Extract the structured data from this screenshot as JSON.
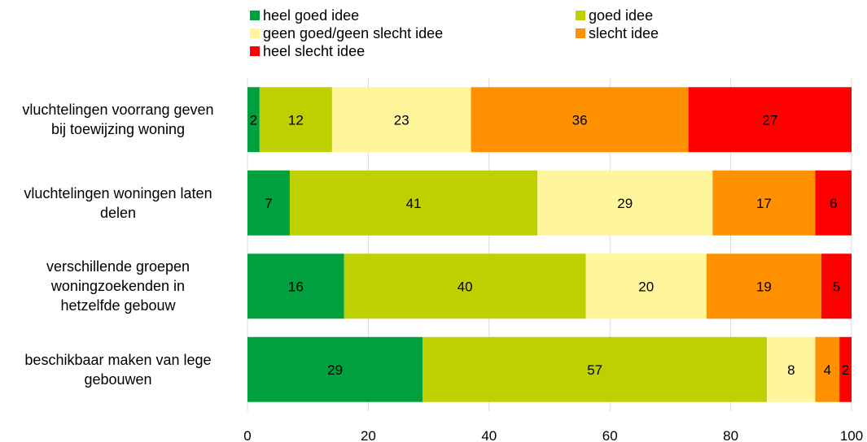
{
  "chart_data": {
    "type": "bar",
    "orientation": "horizontal",
    "stacked": true,
    "categories": [
      "vluchtelingen voorrang geven bij toewijzing woning",
      "vluchtelingen woningen laten delen",
      "verschillende groepen woningzoekenden in hetzelfde gebouw",
      "beschikbaar maken van lege gebouwen"
    ],
    "category_lines": [
      [
        "vluchtelingen voorrang geven",
        "bij toewijzing woning"
      ],
      [
        "vluchtelingen woningen laten",
        "delen"
      ],
      [
        "verschillende groepen",
        "woningzoekenden in",
        "hetzelfde gebouw"
      ],
      [
        "beschikbaar maken van lege",
        "gebouwen"
      ]
    ],
    "series": [
      {
        "name": "heel goed idee",
        "color": "#00a03e",
        "values": [
          2,
          7,
          16,
          29
        ]
      },
      {
        "name": "goed idee",
        "color": "#bed000",
        "values": [
          12,
          41,
          40,
          57
        ]
      },
      {
        "name": "geen goed/geen slecht idee",
        "color": "#fff59a",
        "values": [
          23,
          29,
          20,
          8
        ]
      },
      {
        "name": "slecht idee",
        "color": "#ff9000",
        "values": [
          36,
          17,
          19,
          4
        ]
      },
      {
        "name": "heel slecht idee",
        "color": "#ff0000",
        "values": [
          27,
          6,
          5,
          2
        ]
      }
    ],
    "xlim": [
      0,
      100
    ],
    "xticks": [
      0,
      20,
      40,
      60,
      80,
      100
    ],
    "grid": true,
    "legend_position": "top"
  }
}
